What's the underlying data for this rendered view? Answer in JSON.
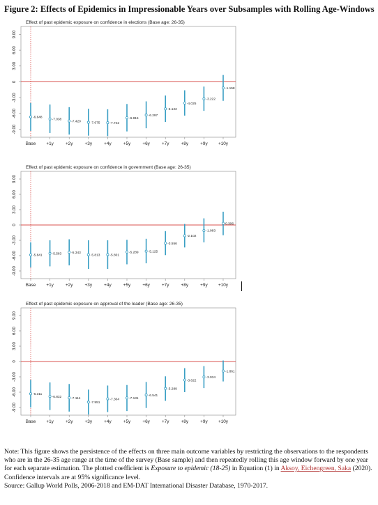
{
  "figure": {
    "title": "Figure 2: Effects of Epidemics in Impressionable Years over Subsamples with Rolling Age-Windows"
  },
  "chart_data": [
    {
      "type": "scatter",
      "title": "Effect of past epidemic exposure on confidence in elections (Base age: 26-35)",
      "categories": [
        "Base",
        "+1y",
        "+2y",
        "+3y",
        "+4y",
        "+5y",
        "+6y",
        "+7y",
        "+8y",
        "+9y",
        "+10y"
      ],
      "values": [
        -6.648,
        -7.038,
        -7.42,
        -7.675,
        -7.742,
        -6.815,
        -6.297,
        -5.122,
        -4.025,
        -3.222,
        -1.158
      ],
      "ci_low": [
        -9.3,
        -9.7,
        -10.0,
        -10.2,
        -10.3,
        -9.4,
        -8.8,
        -7.6,
        -6.4,
        -5.5,
        -3.6
      ],
      "ci_high": [
        -4.0,
        -4.3,
        -4.8,
        -5.1,
        -5.2,
        -4.2,
        -3.7,
        -2.6,
        -1.6,
        -0.9,
        1.3
      ],
      "labels": [
        "-6.648",
        "-7.038",
        "-7.420",
        "-7.675",
        "-7.742",
        "-6.815",
        "-6.297",
        "-5.122",
        "-4.025",
        "-3.222",
        "-1.158"
      ],
      "yticks": [
        "-9.00",
        "-6.00",
        "-3.00",
        "0",
        "3.00",
        "6.00",
        "9.00"
      ],
      "ylim": [
        -10.5,
        10.5
      ],
      "reference_line": 0
    },
    {
      "type": "scatter",
      "title": "Effect of past epidemic exposure on confidence in government (Base age: 26-35)",
      "categories": [
        "Base",
        "+1y",
        "+2y",
        "+3y",
        "+4y",
        "+5y",
        "+6y",
        "+7y",
        "+8y",
        "+9y",
        "+10y"
      ],
      "values": [
        -5.841,
        -5.563,
        -5.343,
        -5.813,
        -5.801,
        -5.289,
        -5.125,
        -3.556,
        -2.102,
        -1.083,
        0.306
      ],
      "ci_low": [
        -8.3,
        -8.1,
        -7.9,
        -8.6,
        -8.6,
        -7.7,
        -7.5,
        -5.9,
        -4.4,
        -3.4,
        -2.0
      ],
      "ci_high": [
        -3.4,
        -3.0,
        -2.8,
        -3.0,
        -3.0,
        -2.9,
        -2.7,
        -1.2,
        0.2,
        1.3,
        2.6
      ],
      "labels": [
        "-5.841",
        "-5.563",
        "-5.343",
        "-5.813",
        "-5.801",
        "-5.289",
        "-5.125",
        "-3.556",
        "-2.102",
        "-1.083",
        "0.306"
      ],
      "yticks": [
        "-9.00",
        "-6.00",
        "-3.00",
        "0",
        "3.00",
        "6.00",
        "9.00"
      ],
      "ylim": [
        -10.5,
        10.5
      ],
      "reference_line": 0
    },
    {
      "type": "scatter",
      "title": "Effect of past epidemic exposure on approval of the leader (Base age: 26-35)",
      "categories": [
        "Base",
        "+1y",
        "+2y",
        "+3y",
        "+4y",
        "+5y",
        "+6y",
        "+7y",
        "+8y",
        "+9y",
        "+10y"
      ],
      "values": [
        -6.311,
        -6.832,
        -7.114,
        -7.951,
        -7.304,
        -7.131,
        -6.541,
        -5.289,
        -3.622,
        -3.034,
        -1.861
      ],
      "ci_low": [
        -9.0,
        -9.5,
        -9.8,
        -10.4,
        -9.9,
        -9.7,
        -9.1,
        -7.7,
        -6.0,
        -5.2,
        -3.9
      ],
      "ci_high": [
        -3.6,
        -4.1,
        -4.4,
        -5.5,
        -4.7,
        -4.6,
        -4.0,
        -2.9,
        -1.3,
        -0.9,
        0.2
      ],
      "labels": [
        "-6.311",
        "-6.832",
        "-7.114",
        "-7.951",
        "-7.304",
        "-7.131",
        "-6.541",
        "-5.289",
        "-3.622",
        "-3.034",
        "-1.861"
      ],
      "yticks": [
        "-9.00",
        "-6.00",
        "-3.00",
        "0",
        "3.00",
        "6.00",
        "9.00"
      ],
      "ylim": [
        -10.5,
        10.5
      ],
      "reference_line": 0
    }
  ],
  "colors": {
    "ci_bar": "#3a9fc4",
    "marker": "#3a9fc4",
    "zero_line": "#d9534f",
    "base_line": "#d9534f",
    "frame": "#888888",
    "text": "#222222"
  },
  "note": {
    "text1": "Note: This figure shows the persistence of the effects on three main outcome variables by restricting the observations to the respondents who are in the 26-35 age range at the time of the survey (Base sample) and then repeatedly rolling this age window forward by one year for each separate estimation. The plotted coefficient is",
    "italic": "Exposure to epidemic (18-25)",
    "text2": "in Equation (1) in",
    "citation": "Aksoy, Eichengreen, Saka",
    "text3": "(2020). Confidence intervals are at 95% significance level.",
    "source": "Source: Gallup World Polls, 2006-2018 and EM-DAT International Disaster Database, 1970-2017."
  }
}
